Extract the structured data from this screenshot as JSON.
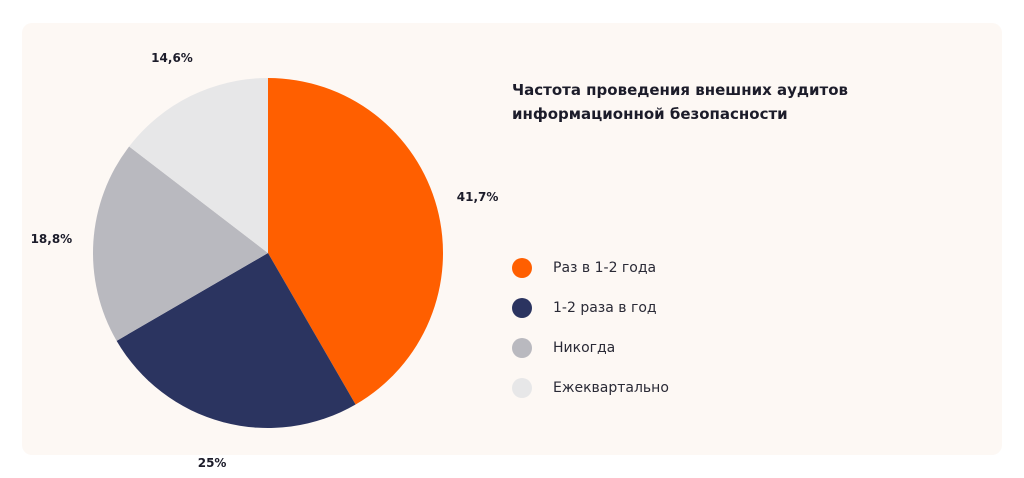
{
  "chart_data": {
    "type": "pie",
    "title": "Частота проведения внешних аудитов информационной безопасности",
    "categories": [
      "Раз в 1-2 года",
      "1-2 раза в год",
      "Никогда",
      "Ежеквартально"
    ],
    "values": [
      41.7,
      25,
      18.8,
      14.6
    ],
    "value_labels": [
      "41,7%",
      "25%",
      "18,8%",
      "14,6%"
    ],
    "colors": [
      "#ff5f00",
      "#2b3460",
      "#b9b9bf",
      "#e7e7e8"
    ],
    "start_angle": "top, clockwise",
    "legend_placement": "right"
  }
}
